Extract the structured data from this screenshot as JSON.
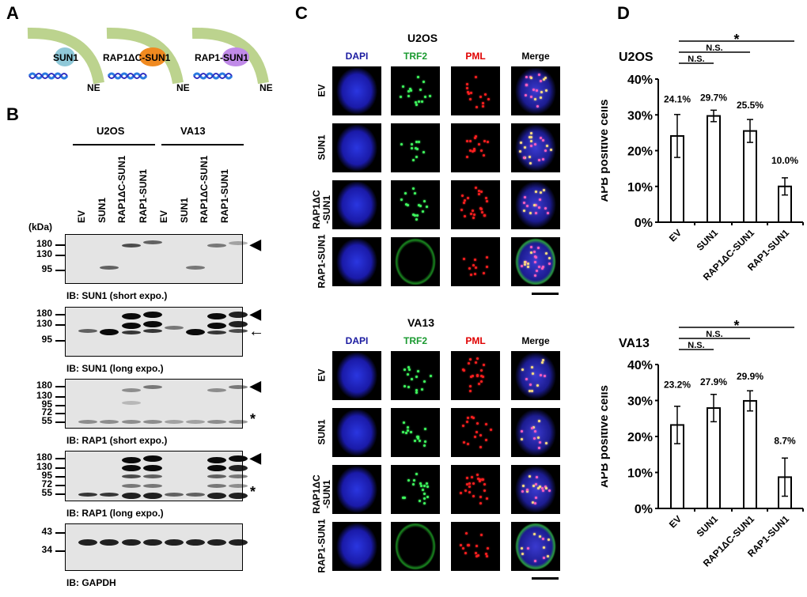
{
  "panels": {
    "A": "A",
    "B": "B",
    "C": "C",
    "D": "D"
  },
  "panelA": {
    "constructs": [
      {
        "label": "SUN1",
        "color": "#8fc8d8"
      },
      {
        "label": "RAP1ΔC-SUN1",
        "color": "#f08a20"
      },
      {
        "label": "RAP1-SUN1",
        "color": "#c08ae8"
      }
    ],
    "ne_label": "NE",
    "ne_color": "#bcd38e"
  },
  "panelB": {
    "groups": [
      "U2OS",
      "VA13"
    ],
    "lanes": [
      "EV",
      "SUN1",
      "RAP1ΔC-SUN1",
      "RAP1-SUN1",
      "EV",
      "SUN1",
      "RAP1ΔC-SUN1",
      "RAP1-SUN1"
    ],
    "kda_label": "(kDa)",
    "blots": [
      {
        "label": "IB: SUN1 (short expo.)",
        "markers": [
          "180",
          "130",
          "95"
        ],
        "annotations": [
          "◀"
        ]
      },
      {
        "label": "IB: SUN1 (long expo.)",
        "markers": [
          "180",
          "130",
          "95"
        ],
        "annotations": [
          "◀",
          "←"
        ]
      },
      {
        "label": "IB: RAP1 (short expo.)",
        "markers": [
          "180",
          "130",
          "95",
          "72",
          "55"
        ],
        "annotations": [
          "◀",
          "*"
        ]
      },
      {
        "label": "IB: RAP1 (long expo.)",
        "markers": [
          "180",
          "130",
          "95",
          "72",
          "55"
        ],
        "annotations": [
          "◀",
          "*"
        ]
      },
      {
        "label": "IB: GAPDH",
        "markers": [
          "43",
          "34"
        ],
        "annotations": []
      }
    ]
  },
  "panelC": {
    "columns": [
      {
        "label": "DAPI",
        "color": "#1a1aa0"
      },
      {
        "label": "TRF2",
        "color": "#1a9a30"
      },
      {
        "label": "PML",
        "color": "#e00000"
      },
      {
        "label": "Merge",
        "color": "#000000"
      }
    ],
    "blocks": [
      {
        "title": "U2OS",
        "rows": [
          "EV",
          "SUN1",
          "RAP1ΔC\n-SUN1",
          "RAP1-SUN1"
        ]
      },
      {
        "title": "VA13",
        "rows": [
          "EV",
          "SUN1",
          "RAP1ΔC\n-SUN1",
          "RAP1-SUN1"
        ]
      }
    ]
  },
  "chart_data": [
    {
      "type": "bar",
      "title": "U2OS",
      "ylabel": "APB positive cells",
      "ylim": [
        0,
        40
      ],
      "yticks": [
        "0%",
        "10%",
        "20%",
        "30%",
        "40%"
      ],
      "categories": [
        "EV",
        "SUN1",
        "RAP1ΔC-SUN1",
        "RAP1-SUN1"
      ],
      "values": [
        24.1,
        29.7,
        25.5,
        10.0
      ],
      "errors": [
        6.0,
        1.6,
        3.2,
        2.4
      ],
      "data_labels": [
        "24.1%",
        "29.7%",
        "25.5%",
        "10.0%"
      ],
      "significance": [
        {
          "from": "EV",
          "to": "SUN1",
          "label": "N.S."
        },
        {
          "from": "EV",
          "to": "RAP1ΔC-SUN1",
          "label": "N.S."
        },
        {
          "from": "EV",
          "to": "RAP1-SUN1",
          "label": "*"
        }
      ]
    },
    {
      "type": "bar",
      "title": "VA13",
      "ylabel": "APB positive cells",
      "ylim": [
        0,
        40
      ],
      "yticks": [
        "0%",
        "10%",
        "20%",
        "30%",
        "40%"
      ],
      "categories": [
        "EV",
        "SUN1",
        "RAP1ΔC-SUN1",
        "RAP1-SUN1"
      ],
      "values": [
        23.2,
        27.9,
        29.9,
        8.7
      ],
      "errors": [
        5.2,
        3.8,
        2.8,
        5.3
      ],
      "data_labels": [
        "23.2%",
        "27.9%",
        "29.9%",
        "8.7%"
      ],
      "significance": [
        {
          "from": "EV",
          "to": "SUN1",
          "label": "N.S."
        },
        {
          "from": "EV",
          "to": "RAP1ΔC-SUN1",
          "label": "N.S."
        },
        {
          "from": "EV",
          "to": "RAP1-SUN1",
          "label": "*"
        }
      ]
    }
  ]
}
